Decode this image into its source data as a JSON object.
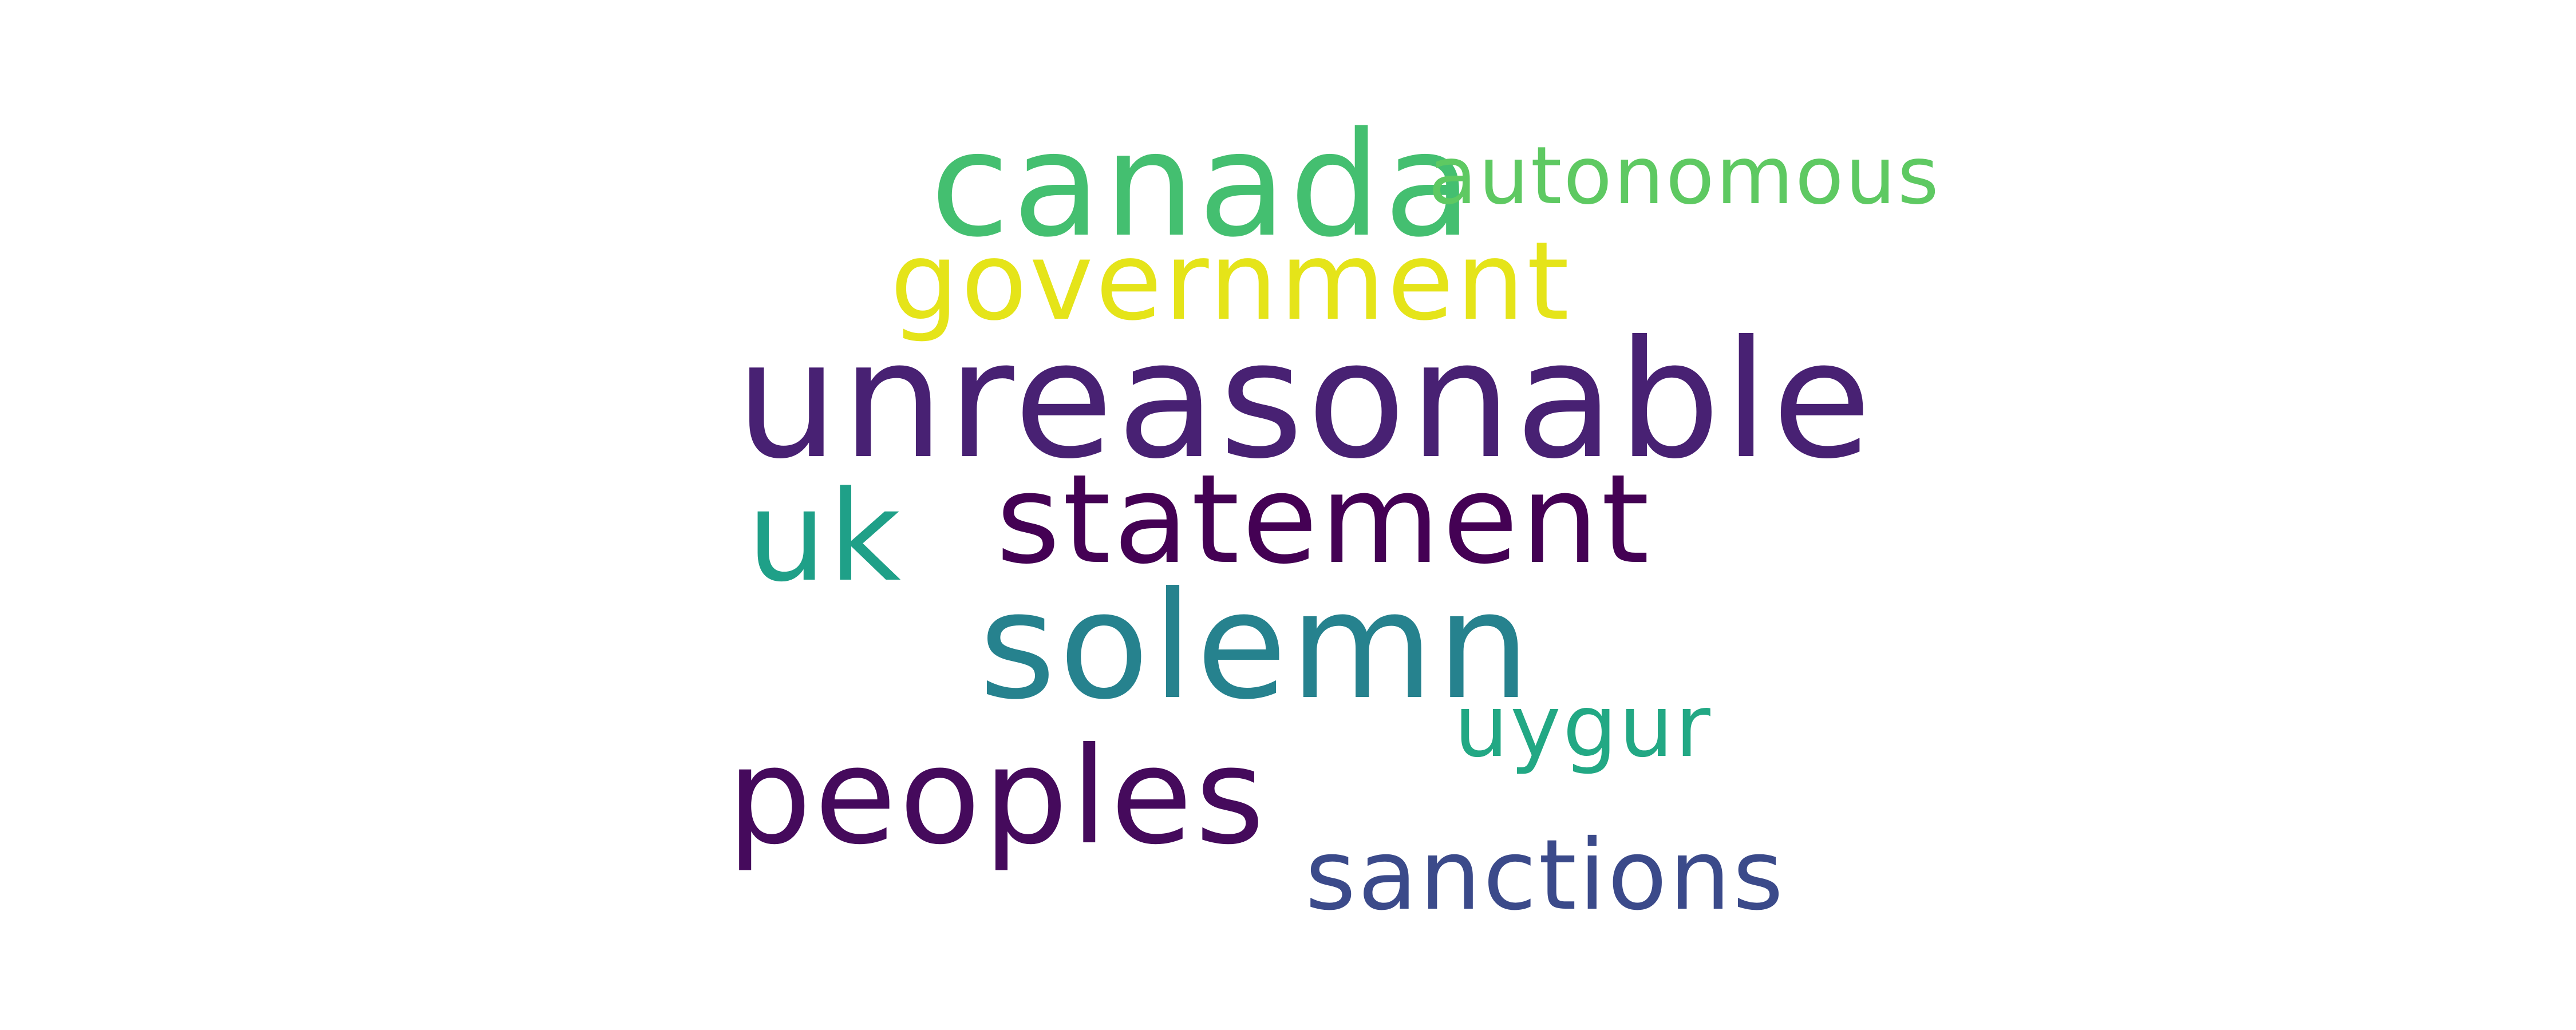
{
  "words": [
    {
      "id": "w-canada",
      "text": "canada",
      "color": "#44bf70"
    },
    {
      "id": "w-autonomous",
      "text": "autonomous",
      "color": "#5ec962"
    },
    {
      "id": "w-government",
      "text": "government",
      "color": "#e5e419"
    },
    {
      "id": "w-unreasonable",
      "text": "unreasonable",
      "color": "#482173"
    },
    {
      "id": "w-statement",
      "text": "statement",
      "color": "#440154"
    },
    {
      "id": "w-uk",
      "text": "uk",
      "color": "#1fa088"
    },
    {
      "id": "w-solemn",
      "text": "solemn",
      "color": "#26828e"
    },
    {
      "id": "w-uygur",
      "text": "uygur",
      "color": "#22a884"
    },
    {
      "id": "w-peoples",
      "text": "peoples",
      "color": "#450a5c"
    },
    {
      "id": "w-sanctions",
      "text": "sanctions",
      "color": "#3b4a8a"
    }
  ]
}
